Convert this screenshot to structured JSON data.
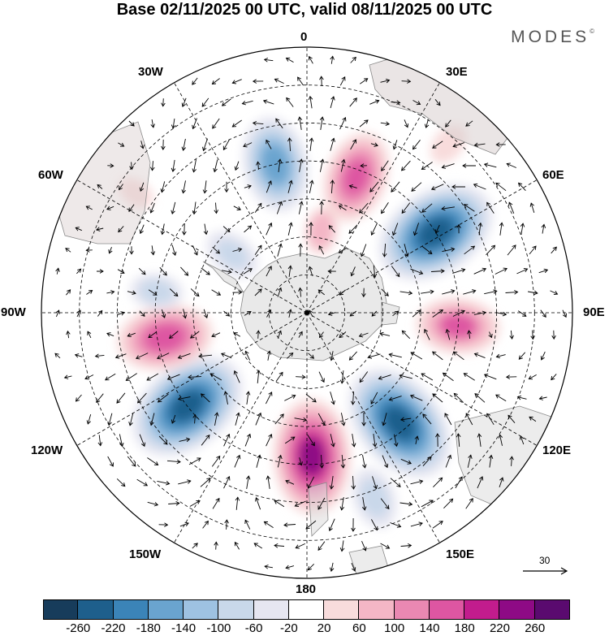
{
  "title": "Base 02/11/2025 00 UTC, valid 08/11/2025 00 UTC",
  "brand": {
    "name": "MODES",
    "mark": "©"
  },
  "longitude_labels": [
    "0",
    "30E",
    "60E",
    "90E",
    "120E",
    "150E",
    "180",
    "150W",
    "120W",
    "90W",
    "60W",
    "30W"
  ],
  "wind_scale": {
    "value": "30",
    "icon": "arrow-right-icon"
  },
  "colorbar": {
    "colors": [
      "#173c5b",
      "#1e5f8c",
      "#3b84b8",
      "#6aa4cf",
      "#9ec2e2",
      "#c9d8ea",
      "#e6e6f1",
      "#ffffff",
      "#f8dcdc",
      "#f4b6c6",
      "#ea88b2",
      "#de56a2",
      "#c21c8d",
      "#8e0a85",
      "#5a0a6f"
    ],
    "ticks": [
      "-260",
      "-220",
      "-180",
      "-140",
      "-100",
      "-60",
      "-20",
      "20",
      "60",
      "100",
      "140",
      "180",
      "220",
      "260"
    ]
  },
  "anomaly_centers": [
    {
      "lon": 20,
      "lat": -52,
      "value": 160
    },
    {
      "lon": -12,
      "lat": -50,
      "value": -170
    },
    {
      "lon": 58,
      "lat": -50,
      "value": -240
    },
    {
      "lon": 95,
      "lat": -50,
      "value": 140
    },
    {
      "lon": 140,
      "lat": -52,
      "value": -240
    },
    {
      "lon": 178,
      "lat": -52,
      "value": 220
    },
    {
      "lon": -128,
      "lat": -50,
      "value": -240
    },
    {
      "lon": -100,
      "lat": -52,
      "value": 170
    },
    {
      "lon": -52,
      "lat": -65,
      "value": -80
    },
    {
      "lon": -82,
      "lat": -50,
      "value": -70
    },
    {
      "lon": 10,
      "lat": -68,
      "value": 60
    },
    {
      "lon": 160,
      "lat": -38,
      "value": -90
    },
    {
      "lon": 40,
      "lat": -32,
      "value": 50
    },
    {
      "lon": -55,
      "lat": -35,
      "value": 40
    }
  ]
}
